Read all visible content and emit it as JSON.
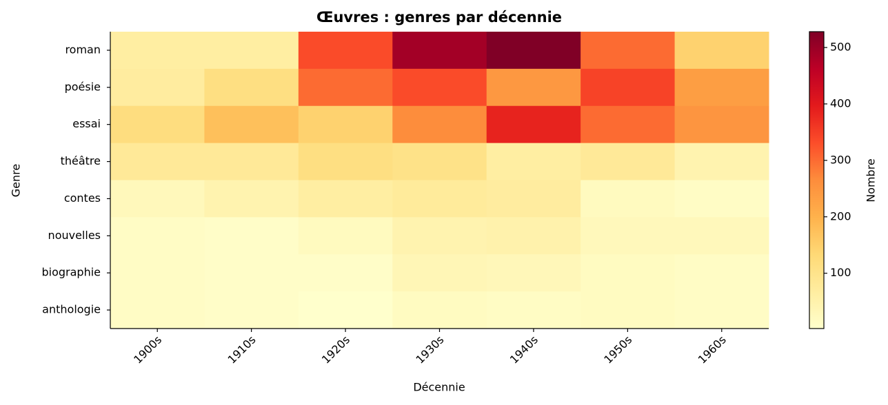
{
  "chart_data": {
    "type": "heatmap",
    "title": "Œuvres : genres par décennie",
    "x_label": "Décennie",
    "y_label": "Genre",
    "colorbar_label": "Nombre",
    "categories": [
      "1900s",
      "1910s",
      "1920s",
      "1930s",
      "1940s",
      "1950s",
      "1960s"
    ],
    "rows": [
      "roman",
      "poésie",
      "essai",
      "théâtre",
      "contes",
      "nouvelles",
      "biographie",
      "anthologie"
    ],
    "values": [
      [
        65,
        65,
        335,
        490,
        528,
        300,
        145
      ],
      [
        70,
        115,
        300,
        335,
        245,
        345,
        235
      ],
      [
        120,
        175,
        145,
        265,
        385,
        300,
        250
      ],
      [
        80,
        80,
        115,
        105,
        65,
        80,
        45
      ],
      [
        28,
        45,
        65,
        75,
        70,
        22,
        12
      ],
      [
        12,
        8,
        22,
        45,
        50,
        28,
        28
      ],
      [
        12,
        8,
        8,
        35,
        30,
        18,
        12
      ],
      [
        12,
        8,
        2,
        18,
        14,
        18,
        12
      ]
    ],
    "colormap": [
      "#ffffcc",
      "#ffeda0",
      "#fed976",
      "#feb24c",
      "#fd8d3c",
      "#fc4e2a",
      "#e31a1c",
      "#bd0026",
      "#800026"
    ],
    "zlim": [
      2,
      528
    ],
    "zticks": [
      100,
      200,
      300,
      400,
      500
    ]
  }
}
